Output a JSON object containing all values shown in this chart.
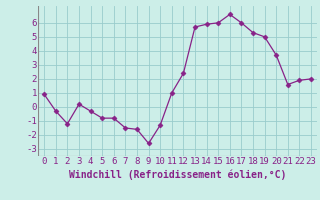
{
  "x": [
    0,
    1,
    2,
    3,
    4,
    5,
    6,
    7,
    8,
    9,
    10,
    11,
    12,
    13,
    14,
    15,
    16,
    17,
    18,
    19,
    20,
    21,
    22,
    23
  ],
  "y": [
    0.9,
    -0.3,
    -1.2,
    0.2,
    -0.3,
    -0.8,
    -0.8,
    -1.5,
    -1.6,
    -2.6,
    -1.3,
    1.0,
    2.4,
    5.7,
    5.9,
    6.0,
    6.6,
    6.0,
    5.3,
    5.0,
    3.7,
    1.6,
    1.9,
    2.0
  ],
  "line_color": "#882288",
  "marker": "D",
  "marker_size": 2.5,
  "bg_color": "#cceee8",
  "grid_color": "#99cccc",
  "xlabel": "Windchill (Refroidissement éolien,°C)",
  "xlabel_fontsize": 7,
  "tick_fontsize": 6.5,
  "ylim": [
    -3.5,
    7.2
  ],
  "xlim": [
    -0.5,
    23.5
  ],
  "yticks": [
    -3,
    -2,
    -1,
    0,
    1,
    2,
    3,
    4,
    5,
    6
  ],
  "xticks": [
    0,
    1,
    2,
    3,
    4,
    5,
    6,
    7,
    8,
    9,
    10,
    11,
    12,
    13,
    14,
    15,
    16,
    17,
    18,
    19,
    20,
    21,
    22,
    23
  ]
}
